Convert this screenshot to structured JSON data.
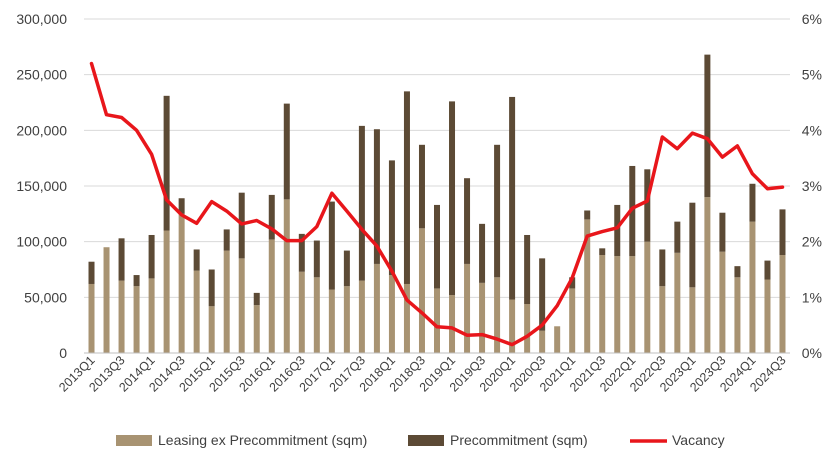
{
  "chart_data": {
    "type": "bar",
    "stacked": true,
    "title": "",
    "xlabel": "",
    "ylabel": "",
    "ylim": [
      0,
      300000
    ],
    "y2lim": [
      0,
      6
    ],
    "y_ticks": [
      "0",
      "50,000",
      "100,000",
      "150,000",
      "200,000",
      "250,000",
      "300,000"
    ],
    "y2_ticks": [
      "0%",
      "1%",
      "2%",
      "3%",
      "4%",
      "5%",
      "6%"
    ],
    "grid": true,
    "legend_position": "bottom",
    "categories": [
      "2013Q1",
      "2013Q2",
      "2013Q3",
      "2013Q4",
      "2014Q1",
      "2014Q2",
      "2014Q3",
      "2014Q4",
      "2015Q1",
      "2015Q2",
      "2015Q3",
      "2015Q4",
      "2016Q1",
      "2016Q2",
      "2016Q3",
      "2016Q4",
      "2017Q1",
      "2017Q2",
      "2017Q3",
      "2017Q4",
      "2018Q1",
      "2018Q2",
      "2018Q3",
      "2018Q4",
      "2019Q1",
      "2019Q2",
      "2019Q3",
      "2019Q4",
      "2020Q1",
      "2020Q2",
      "2020Q3",
      "2020Q4",
      "2021Q1",
      "2021Q2",
      "2021Q3",
      "2021Q4",
      "2022Q1",
      "2022Q2",
      "2022Q3",
      "2022Q4",
      "2023Q1",
      "2023Q2",
      "2023Q3",
      "2023Q4",
      "2024Q1",
      "2024Q2",
      "2024Q3"
    ],
    "x_tick_labels": [
      "2013Q1",
      "2013Q3",
      "2014Q1",
      "2014Q3",
      "2015Q1",
      "2015Q3",
      "2016Q1",
      "2016Q3",
      "2017Q1",
      "2017Q3",
      "2018Q1",
      "2018Q3",
      "2019Q1",
      "2019Q3",
      "2020Q1",
      "2020Q3",
      "2021Q1",
      "2021Q3",
      "2022Q1",
      "2022Q3",
      "2023Q1",
      "2023Q3",
      "2024Q1",
      "2024Q3"
    ],
    "series": [
      {
        "name": "Leasing ex Precommitment (sqm)",
        "kind": "bar",
        "color": "#A89372",
        "values": [
          62000,
          95000,
          65000,
          60000,
          67000,
          110000,
          125000,
          74000,
          42000,
          92000,
          85000,
          43000,
          102000,
          138000,
          73000,
          68000,
          57000,
          60000,
          65000,
          80000,
          70000,
          62000,
          112000,
          58000,
          52000,
          80000,
          63000,
          68000,
          48000,
          44000,
          20000,
          24000,
          58000,
          120000,
          88000,
          87000,
          87000,
          100000,
          60000,
          90000,
          59000,
          140000,
          91000,
          68000,
          118000,
          66000,
          88000
        ]
      },
      {
        "name": "Precommitment (sqm)",
        "kind": "bar",
        "color": "#5C4A35",
        "values": [
          20000,
          0,
          38000,
          10000,
          39000,
          121000,
          14000,
          19000,
          33000,
          19000,
          59000,
          11000,
          40000,
          86000,
          34000,
          33000,
          79000,
          32000,
          139000,
          121000,
          103000,
          173000,
          75000,
          75000,
          174000,
          77000,
          53000,
          119000,
          182000,
          62000,
          65000,
          0,
          10000,
          8000,
          6000,
          46000,
          81000,
          65000,
          33000,
          28000,
          76000,
          128000,
          35000,
          10000,
          34000,
          17000,
          41000
        ]
      },
      {
        "name": "Vacancy",
        "kind": "line",
        "axis": "right",
        "color": "#E8161B",
        "unit": "%",
        "values": [
          5.2,
          4.28,
          4.23,
          4.0,
          3.57,
          2.75,
          2.48,
          2.33,
          2.72,
          2.55,
          2.32,
          2.38,
          2.23,
          2.02,
          2.02,
          2.27,
          2.87,
          2.55,
          2.22,
          1.92,
          1.47,
          0.95,
          0.72,
          0.47,
          0.45,
          0.32,
          0.33,
          0.25,
          0.15,
          0.3,
          0.5,
          0.85,
          1.35,
          2.1,
          2.18,
          2.25,
          2.6,
          2.73,
          3.88,
          3.67,
          3.95,
          3.85,
          3.52,
          3.72,
          3.22,
          2.95,
          2.98
        ]
      }
    ]
  }
}
